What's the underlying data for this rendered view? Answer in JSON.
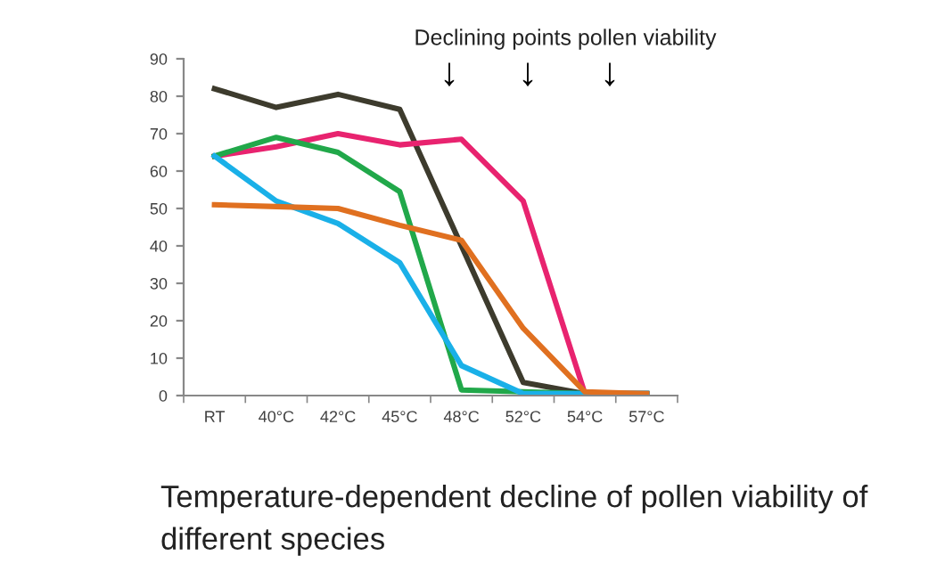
{
  "chart_data": {
    "type": "line",
    "categories": [
      "RT",
      "40°C",
      "42°C",
      "45°C",
      "48°C",
      "52°C",
      "54°C",
      "57°C"
    ],
    "ylim": [
      0,
      90
    ],
    "yticks": [
      0,
      10,
      20,
      30,
      40,
      50,
      60,
      70,
      80,
      90
    ],
    "grid": false,
    "marker": "none",
    "line_style": "solid",
    "series": [
      {
        "color": "#3d3b2d",
        "values": [
          82,
          77,
          80.5,
          76.5,
          40,
          3.5,
          0.5,
          0.5
        ]
      },
      {
        "color": "#e8236f",
        "values": [
          64,
          66.5,
          70,
          67,
          68.5,
          52,
          0.5,
          0.5
        ]
      },
      {
        "color": "#21a84a",
        "values": [
          64,
          69,
          65,
          54.5,
          1.5,
          1,
          0.5,
          0.5
        ]
      },
      {
        "color": "#1ab0e8",
        "values": [
          64,
          52,
          46,
          35.5,
          8,
          0.5,
          0.5,
          0.5
        ]
      },
      {
        "color": "#e07020",
        "values": [
          51,
          50.5,
          50,
          45.5,
          41.5,
          18,
          1,
          0.5
        ]
      }
    ],
    "annotations": [
      "Declining points pollen viability",
      "Temperature-dependent decline of pollen viability of different species",
      "↓",
      "↓",
      "↓"
    ]
  }
}
